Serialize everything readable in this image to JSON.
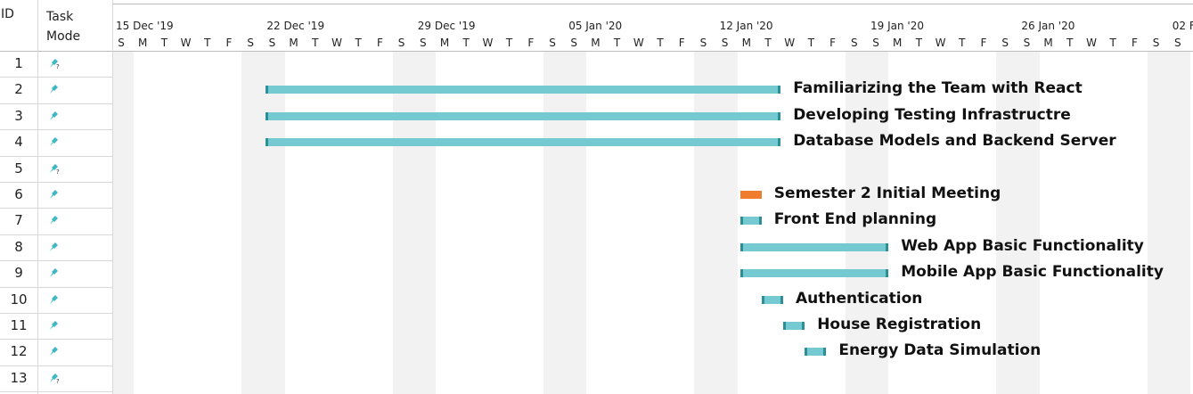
{
  "header": {
    "id": "ID",
    "mode_line1": "Task",
    "mode_line2": "Mode"
  },
  "timescale": {
    "weeks": [
      "15 Dec '19",
      "22 Dec '19",
      "29 Dec '19",
      "05 Jan '20",
      "12 Jan '20",
      "19 Jan '20",
      "26 Jan '20",
      "02 F"
    ],
    "days": [
      "S",
      "M",
      "T",
      "W",
      "T",
      "F",
      "S"
    ]
  },
  "rows": [
    {
      "id": "1",
      "mode": "manual-unscheduled"
    },
    {
      "id": "2",
      "mode": "manual"
    },
    {
      "id": "3",
      "mode": "manual"
    },
    {
      "id": "4",
      "mode": "manual"
    },
    {
      "id": "5",
      "mode": "manual-unscheduled"
    },
    {
      "id": "6",
      "mode": "manual"
    },
    {
      "id": "7",
      "mode": "manual"
    },
    {
      "id": "8",
      "mode": "manual"
    },
    {
      "id": "9",
      "mode": "manual"
    },
    {
      "id": "10",
      "mode": "manual"
    },
    {
      "id": "11",
      "mode": "manual"
    },
    {
      "id": "12",
      "mode": "manual"
    },
    {
      "id": "13",
      "mode": "manual-unscheduled"
    }
  ],
  "tasks": [
    {
      "row": 2,
      "name": "Familiarizing the Team with React",
      "start": "22 Dec '19",
      "end": "14 Jan '20",
      "color": "#75c9d1"
    },
    {
      "row": 3,
      "name": "Developing Testing Infrastructre",
      "start": "22 Dec '19",
      "end": "14 Jan '20",
      "color": "#75c9d1"
    },
    {
      "row": 4,
      "name": "Database Models and Backend Server",
      "start": "22 Dec '19",
      "end": "14 Jan '20",
      "color": "#75c9d1"
    },
    {
      "row": 6,
      "name": "Semester 2 Initial Meeting",
      "start": "13 Jan '20",
      "end": "13 Jan '20",
      "color": "#ef7d2d"
    },
    {
      "row": 7,
      "name": "Front End planning",
      "start": "13 Jan '20",
      "end": "13 Jan '20",
      "color": "#75c9d1"
    },
    {
      "row": 8,
      "name": "Web App Basic Functionality",
      "start": "13 Jan '20",
      "end": "19 Jan '20",
      "color": "#75c9d1"
    },
    {
      "row": 9,
      "name": "Mobile App Basic Functionality",
      "start": "13 Jan '20",
      "end": "19 Jan '20",
      "color": "#75c9d1"
    },
    {
      "row": 10,
      "name": "Authentication",
      "start": "14 Jan '20",
      "end": "14 Jan '20",
      "color": "#75c9d1"
    },
    {
      "row": 11,
      "name": "House Registration",
      "start": "15 Jan '20",
      "end": "15 Jan '20",
      "color": "#75c9d1"
    },
    {
      "row": 12,
      "name": "Energy Data Simulation",
      "start": "16 Jan '20",
      "end": "16 Jan '20",
      "color": "#75c9d1"
    }
  ],
  "colors": {
    "weekend_shade": "#f2f2f2",
    "pin": "#3fb8c6",
    "grid": "#d8d8d8"
  }
}
